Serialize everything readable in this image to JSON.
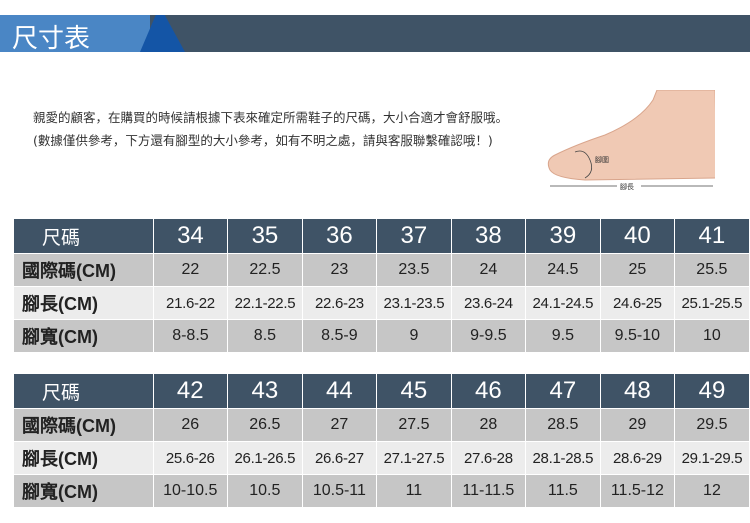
{
  "title": "尺寸表",
  "intro": "親愛的顧客，在購買的時候請根據下表來確定所需鞋子的尺碼，大小合適才會舒服哦。 (數據僅供參考，下方還有腳型的大小參考，如有不明之處，請與客服聯繫確認哦！)",
  "diagram": {
    "girth_label": "腳圍",
    "length_label": "腳長"
  },
  "tables": [
    {
      "rows": [
        [
          "尺碼",
          "34",
          "35",
          "36",
          "37",
          "38",
          "39",
          "40",
          "41"
        ],
        [
          "國際碼(CM)",
          "22",
          "22.5",
          "23",
          "23.5",
          "24",
          "24.5",
          "25",
          "25.5"
        ],
        [
          "腳長(CM)",
          "21.6-22",
          "22.1-22.5",
          "22.6-23",
          "23.1-23.5",
          "23.6-24",
          "24.1-24.5",
          "24.6-25",
          "25.1-25.5"
        ],
        [
          "腳寬(CM)",
          "8-8.5",
          "8.5",
          "8.5-9",
          "9",
          "9-9.5",
          "9.5",
          "9.5-10",
          "10"
        ]
      ]
    },
    {
      "rows": [
        [
          "尺碼",
          "42",
          "43",
          "44",
          "45",
          "46",
          "47",
          "48",
          "49"
        ],
        [
          "國際碼(CM)",
          "26",
          "26.5",
          "27",
          "27.5",
          "28",
          "28.5",
          "29",
          "29.5"
        ],
        [
          "腳長(CM)",
          "25.6-26",
          "26.1-26.5",
          "26.6-27",
          "27.1-27.5",
          "27.6-28",
          "28.1-28.5",
          "28.6-29",
          "29.1-29.5"
        ],
        [
          "腳寬(CM)",
          "10-10.5",
          "10.5",
          "10.5-11",
          "11",
          "11-11.5",
          "11.5",
          "11.5-12",
          "12"
        ]
      ]
    }
  ],
  "colors": {
    "header": "#3f5366",
    "tab": "#4a86c5",
    "accent": "#1455a6",
    "row_dark": "#c6c6c6",
    "row_light": "#ececec"
  }
}
